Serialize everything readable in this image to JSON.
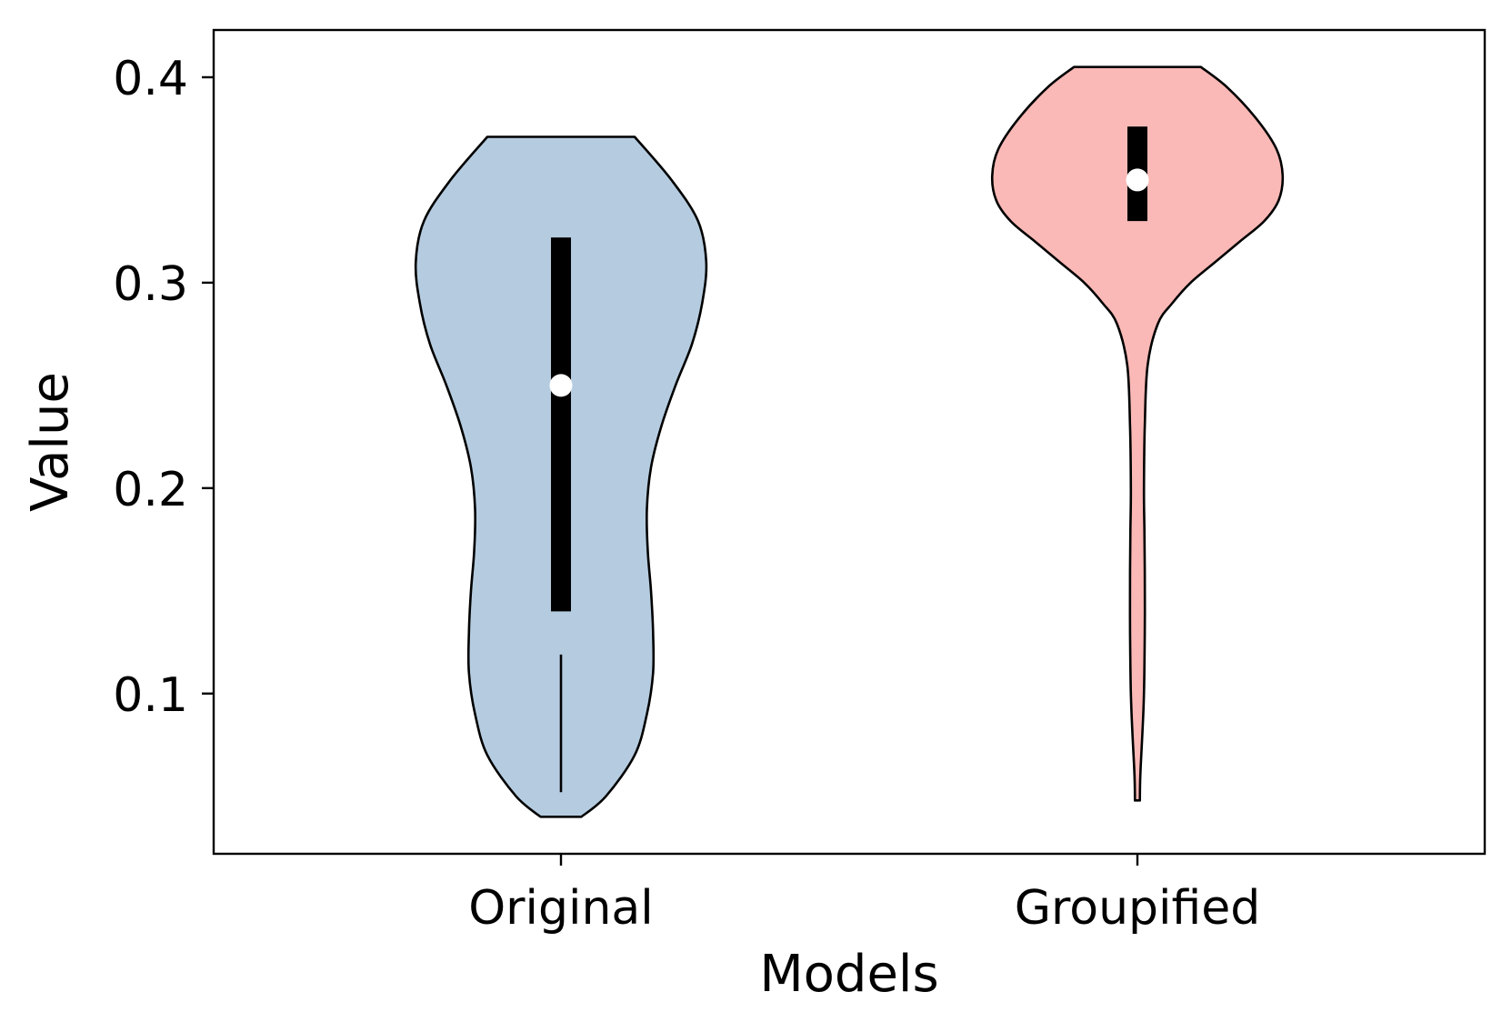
{
  "chart_data": {
    "type": "violin",
    "title": "",
    "xlabel": "Models",
    "ylabel": "Value",
    "ylim": [
      0.022,
      0.423
    ],
    "yticks": [
      0.1,
      0.2,
      0.3,
      0.4
    ],
    "ytick_labels": [
      "0.1",
      "0.2",
      "0.3",
      "0.4"
    ],
    "grid": false,
    "legend": "none",
    "categories": [
      "Original",
      "Groupified"
    ],
    "series": [
      {
        "category": "Original",
        "color": "#b5cce0",
        "min": 0.04,
        "max": 0.371,
        "q1": 0.14,
        "median": 0.25,
        "q3": 0.322,
        "whisker_low": [
          0.052,
          0.119
        ],
        "density_profile": [
          [
            0.04,
            0.05
          ],
          [
            0.05,
            0.11
          ],
          [
            0.07,
            0.18
          ],
          [
            0.09,
            0.21
          ],
          [
            0.11,
            0.225
          ],
          [
            0.13,
            0.225
          ],
          [
            0.15,
            0.22
          ],
          [
            0.17,
            0.212
          ],
          [
            0.19,
            0.21
          ],
          [
            0.21,
            0.22
          ],
          [
            0.23,
            0.245
          ],
          [
            0.25,
            0.28
          ],
          [
            0.27,
            0.32
          ],
          [
            0.29,
            0.345
          ],
          [
            0.31,
            0.355
          ],
          [
            0.33,
            0.335
          ],
          [
            0.35,
            0.27
          ],
          [
            0.371,
            0.18
          ]
        ]
      },
      {
        "category": "Groupified",
        "color": "#fab9b6",
        "min": 0.048,
        "max": 0.405,
        "q1": 0.33,
        "median": 0.35,
        "q3": 0.376,
        "density_profile": [
          [
            0.048,
            0.006
          ],
          [
            0.06,
            0.007
          ],
          [
            0.08,
            0.012
          ],
          [
            0.1,
            0.016
          ],
          [
            0.13,
            0.018
          ],
          [
            0.16,
            0.018
          ],
          [
            0.18,
            0.017
          ],
          [
            0.2,
            0.016
          ],
          [
            0.23,
            0.018
          ],
          [
            0.26,
            0.025
          ],
          [
            0.28,
            0.05
          ],
          [
            0.29,
            0.085
          ],
          [
            0.3,
            0.13
          ],
          [
            0.31,
            0.19
          ],
          [
            0.32,
            0.25
          ],
          [
            0.33,
            0.31
          ],
          [
            0.34,
            0.345
          ],
          [
            0.352,
            0.355
          ],
          [
            0.365,
            0.34
          ],
          [
            0.38,
            0.29
          ],
          [
            0.395,
            0.22
          ],
          [
            0.405,
            0.155
          ]
        ]
      }
    ]
  }
}
